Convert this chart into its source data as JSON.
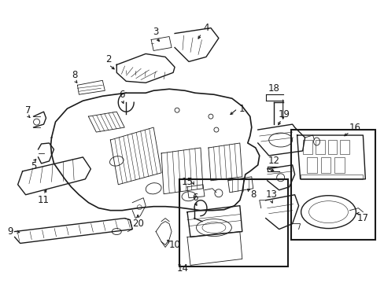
{
  "background_color": "#ffffff",
  "figsize": [
    4.89,
    3.6
  ],
  "dpi": 100,
  "line_color": "#1a1a1a",
  "lw_main": 1.0,
  "lw_thin": 0.6,
  "lw_detail": 0.4,
  "font_size": 8.5,
  "arrow_size": 5
}
